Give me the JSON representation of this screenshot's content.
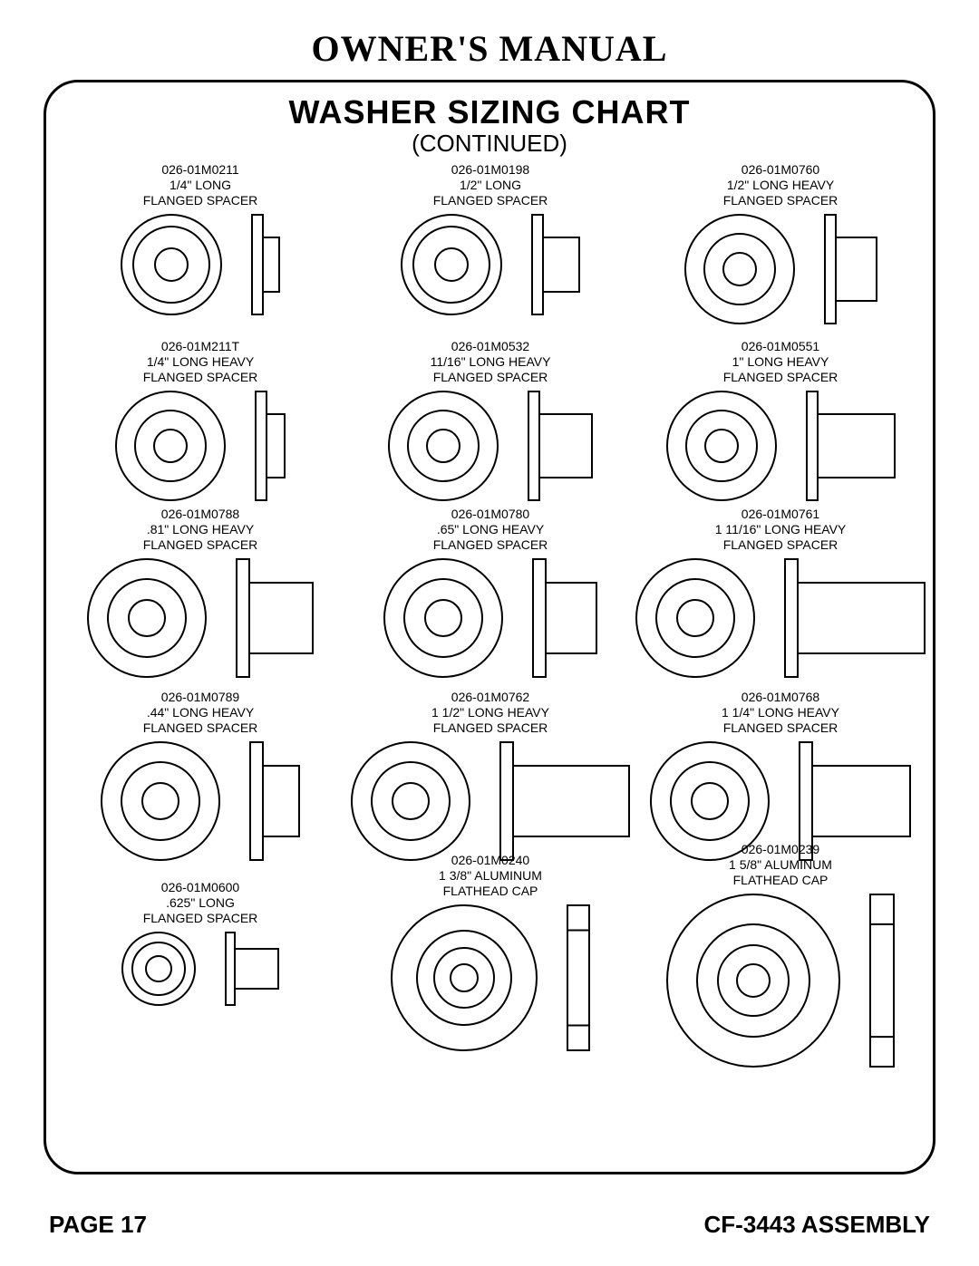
{
  "header": "OWNER'S MANUAL",
  "title": "WASHER SIZING CHART",
  "subtitle": "(CONTINUED)",
  "footer_left": "PAGE 17",
  "footer_right": "CF-3443 ASSEMBLY",
  "colors": {
    "stroke": "#000000",
    "fill": "#ffffff",
    "background": "#ffffff"
  },
  "stroke_width": 2,
  "items": [
    {
      "row": 1,
      "col": 1,
      "part": "026-01M0211",
      "desc1": "1/4\" LONG",
      "desc2": "FLANGED SPACER",
      "type": "flanged_spacer",
      "front": {
        "outer_d": 110,
        "flange_d": 84,
        "bore_d": 36
      },
      "side": {
        "flange_d": 110,
        "flange_t": 12,
        "tube_d": 60,
        "tube_len": 18
      }
    },
    {
      "row": 1,
      "col": 2,
      "part": "026-01M0198",
      "desc1": "1/2\" LONG",
      "desc2": "FLANGED SPACER",
      "type": "flanged_spacer",
      "front": {
        "outer_d": 110,
        "flange_d": 84,
        "bore_d": 36
      },
      "side": {
        "flange_d": 110,
        "flange_t": 12,
        "tube_d": 60,
        "tube_len": 40
      }
    },
    {
      "row": 1,
      "col": 3,
      "part": "026-01M0760",
      "desc1": "1/2\" LONG HEAVY",
      "desc2": "FLANGED SPACER",
      "type": "heavy_flanged_spacer",
      "front": {
        "outer_d": 120,
        "inner_d": 78,
        "bore_d": 36
      },
      "side": {
        "flange_d": 120,
        "flange_t": 12,
        "tube_d": 70,
        "tube_len": 45
      }
    },
    {
      "row": 2,
      "col": 1,
      "part": "026-01M211T",
      "desc1": "1/4\" LONG HEAVY",
      "desc2": "FLANGED SPACER",
      "type": "heavy_flanged_spacer",
      "front": {
        "outer_d": 120,
        "inner_d": 78,
        "bore_d": 36
      },
      "side": {
        "flange_d": 120,
        "flange_t": 12,
        "tube_d": 70,
        "tube_len": 20
      }
    },
    {
      "row": 2,
      "col": 2,
      "part": "026-01M0532",
      "desc1": "11/16\" LONG HEAVY",
      "desc2": "FLANGED SPACER",
      "type": "heavy_flanged_spacer",
      "front": {
        "outer_d": 120,
        "inner_d": 78,
        "bore_d": 36
      },
      "side": {
        "flange_d": 120,
        "flange_t": 12,
        "tube_d": 70,
        "tube_len": 58
      }
    },
    {
      "row": 2,
      "col": 3,
      "part": "026-01M0551",
      "desc1": "1\" LONG HEAVY",
      "desc2": "FLANGED SPACER",
      "type": "heavy_flanged_spacer",
      "front": {
        "outer_d": 120,
        "inner_d": 78,
        "bore_d": 36
      },
      "side": {
        "flange_d": 120,
        "flange_t": 12,
        "tube_d": 70,
        "tube_len": 85
      }
    },
    {
      "row": 3,
      "col": 1,
      "part": "026-01M0788",
      "desc1": ".81\" LONG HEAVY",
      "desc2": "FLANGED SPACER",
      "type": "heavy_flanged_spacer",
      "front": {
        "outer_d": 130,
        "inner_d": 86,
        "bore_d": 40
      },
      "side": {
        "flange_d": 130,
        "flange_t": 14,
        "tube_d": 78,
        "tube_len": 70
      }
    },
    {
      "row": 3,
      "col": 2,
      "part": "026-01M0780",
      "desc1": ".65\" LONG HEAVY",
      "desc2": "FLANGED SPACER",
      "type": "heavy_flanged_spacer",
      "front": {
        "outer_d": 130,
        "inner_d": 86,
        "bore_d": 40
      },
      "side": {
        "flange_d": 130,
        "flange_t": 14,
        "tube_d": 78,
        "tube_len": 56
      }
    },
    {
      "row": 3,
      "col": 3,
      "part": "026-01M0761",
      "desc1": "1 11/16\" LONG HEAVY",
      "desc2": "FLANGED SPACER",
      "type": "heavy_flanged_spacer",
      "front": {
        "outer_d": 130,
        "inner_d": 86,
        "bore_d": 40
      },
      "side": {
        "flange_d": 130,
        "flange_t": 14,
        "tube_d": 78,
        "tube_len": 140
      }
    },
    {
      "row": 4,
      "col": 1,
      "part": "026-01M0789",
      "desc1": ".44\" LONG HEAVY",
      "desc2": "FLANGED SPACER",
      "type": "heavy_flanged_spacer",
      "front": {
        "outer_d": 130,
        "inner_d": 86,
        "bore_d": 40
      },
      "side": {
        "flange_d": 130,
        "flange_t": 14,
        "tube_d": 78,
        "tube_len": 40
      }
    },
    {
      "row": 4,
      "col": 2,
      "part": "026-01M0762",
      "desc1": "1 1/2\" LONG HEAVY",
      "desc2": "FLANGED SPACER",
      "type": "heavy_flanged_spacer",
      "front": {
        "outer_d": 130,
        "inner_d": 86,
        "bore_d": 40
      },
      "side": {
        "flange_d": 130,
        "flange_t": 14,
        "tube_d": 78,
        "tube_len": 128
      }
    },
    {
      "row": 4,
      "col": 3,
      "part": "026-01M0768",
      "desc1": "1 1/4\" LONG HEAVY",
      "desc2": "FLANGED SPACER",
      "type": "heavy_flanged_spacer",
      "front": {
        "outer_d": 130,
        "inner_d": 86,
        "bore_d": 40
      },
      "side": {
        "flange_d": 130,
        "flange_t": 14,
        "tube_d": 78,
        "tube_len": 108
      }
    },
    {
      "row": 5,
      "col": 1,
      "part": "026-01M0600",
      "desc1": ".625\" LONG",
      "desc2": "FLANGED SPACER",
      "type": "flanged_spacer",
      "front": {
        "outer_d": 80,
        "flange_d": 58,
        "bore_d": 28
      },
      "side": {
        "flange_d": 80,
        "flange_t": 10,
        "tube_d": 44,
        "tube_len": 48
      }
    },
    {
      "row": 5,
      "col": 2,
      "part": "026-01M0240",
      "desc1": "1 3/8\" ALUMINUM",
      "desc2": "FLATHEAD CAP",
      "type": "flathead_cap",
      "front": {
        "outer_d": 160,
        "inner1_d": 104,
        "inner2_d": 66,
        "bore_d": 30
      },
      "side": {
        "outer_d": 160,
        "thickness": 24
      }
    },
    {
      "row": 5,
      "col": 3,
      "part": "026-01M0239",
      "desc1": "1 5/8\" ALUMINUM",
      "desc2": "FLATHEAD CAP",
      "type": "flathead_cap",
      "front": {
        "outer_d": 190,
        "inner1_d": 124,
        "inner2_d": 78,
        "bore_d": 36
      },
      "side": {
        "outer_d": 190,
        "thickness": 26
      }
    }
  ]
}
